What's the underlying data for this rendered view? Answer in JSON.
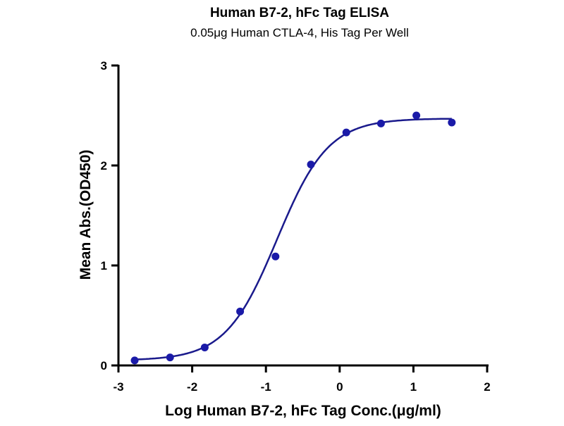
{
  "chart_data": {
    "type": "scatter",
    "title": "Human B7-2, hFc Tag ELISA",
    "subtitle": "0.05μg Human CTLA-4, His Tag Per Well",
    "xlabel": "Log Human B7-2, hFc Tag Conc.(μg/ml)",
    "ylabel": "Mean Abs.(OD450)",
    "xlim": [
      -3,
      2
    ],
    "ylim": [
      0,
      3
    ],
    "xticks": [
      "-3",
      "-2",
      "-1",
      "0",
      "1",
      "2"
    ],
    "yticks": [
      "0",
      "1",
      "2",
      "3"
    ],
    "grid": false,
    "series": [
      {
        "name": "Human B7-2, hFc Tag",
        "color": "#1a1aa8",
        "x": [
          -2.78,
          -2.3,
          -1.83,
          -1.35,
          -0.87,
          -0.39,
          0.09,
          0.56,
          1.04,
          1.52
        ],
        "y": [
          0.05,
          0.08,
          0.18,
          0.54,
          1.09,
          2.01,
          2.33,
          2.42,
          2.5,
          2.43
        ]
      }
    ],
    "fit": {
      "model": "4PL",
      "bottom": 0.05,
      "top": 2.47,
      "logEC50": -0.85,
      "hill": 1.25,
      "color": "#1a1a8c"
    }
  }
}
